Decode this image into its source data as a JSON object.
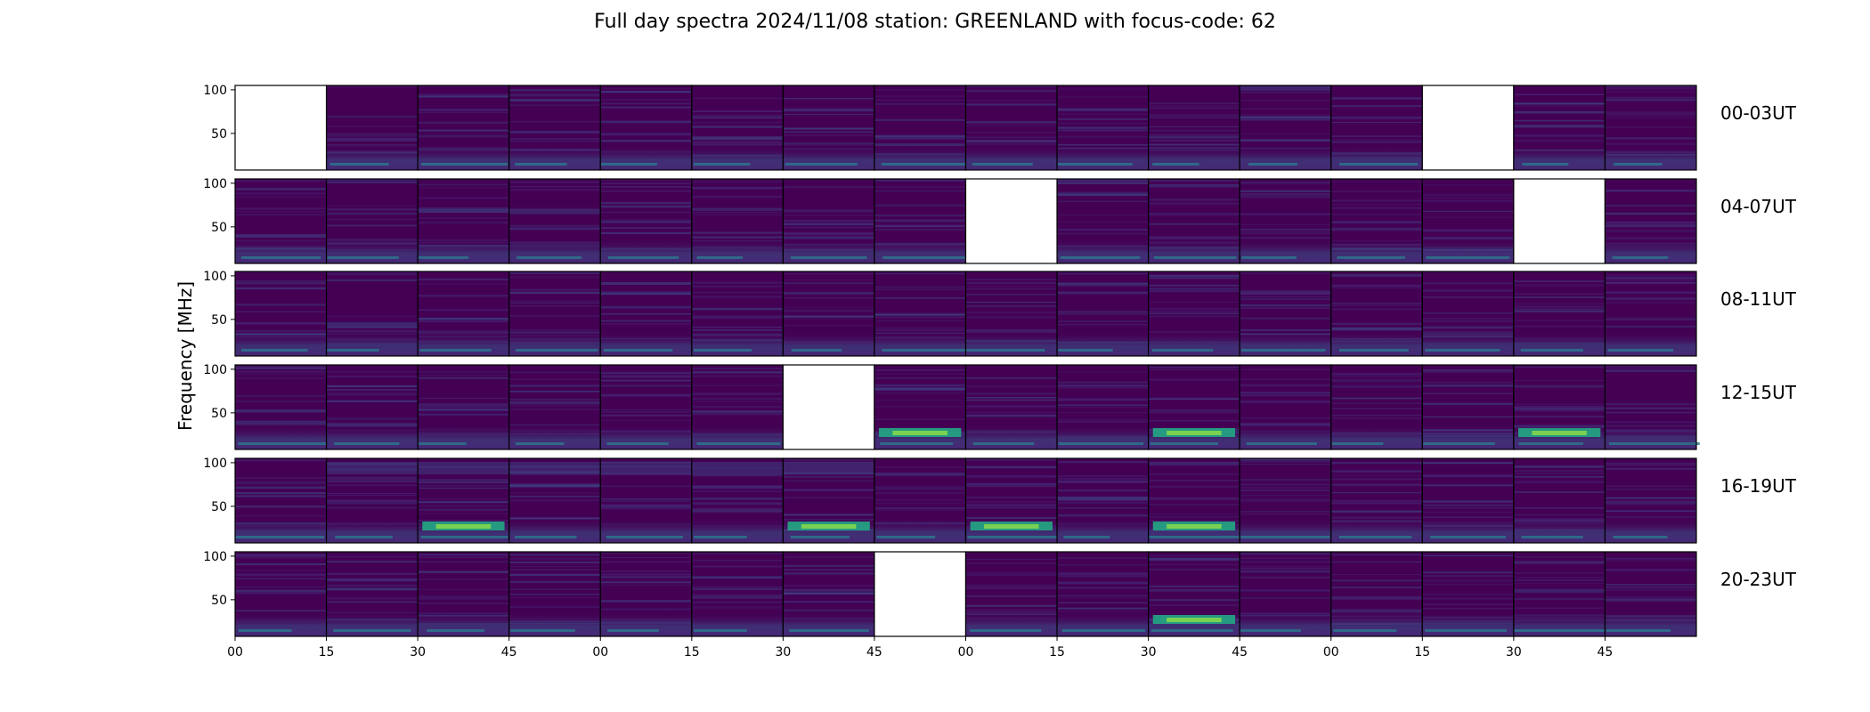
{
  "chart_data": {
    "type": "heatmap",
    "title": "Full day spectra 2024/11/08 station: GREENLAND with focus-code: 62",
    "ylabel": "Frequency [MHz]",
    "colormap": "viridis",
    "background_color": "#440154",
    "missing_color": "#ffffff",
    "row_labels": [
      "00-03UT",
      "04-07UT",
      "08-11UT",
      "12-15UT",
      "16-19UT",
      "20-23UT"
    ],
    "y_ticks": [
      100,
      50
    ],
    "x_tick_labels": [
      "00",
      "15",
      "30",
      "45",
      "00",
      "15",
      "30",
      "45",
      "00",
      "15",
      "30",
      "45",
      "00",
      "15",
      "30",
      "45"
    ],
    "panels_per_row": 16,
    "missing_panels": [
      [
        0,
        0
      ],
      [
        0,
        13
      ],
      [
        1,
        8
      ],
      [
        1,
        14
      ],
      [
        3,
        6
      ],
      [
        5,
        7
      ]
    ],
    "bright_panels": [
      [
        3,
        7
      ],
      [
        4,
        2
      ],
      [
        4,
        8
      ],
      [
        4,
        10
      ],
      [
        3,
        10
      ],
      [
        3,
        14
      ],
      [
        5,
        10
      ],
      [
        4,
        6
      ]
    ],
    "grid": false
  }
}
